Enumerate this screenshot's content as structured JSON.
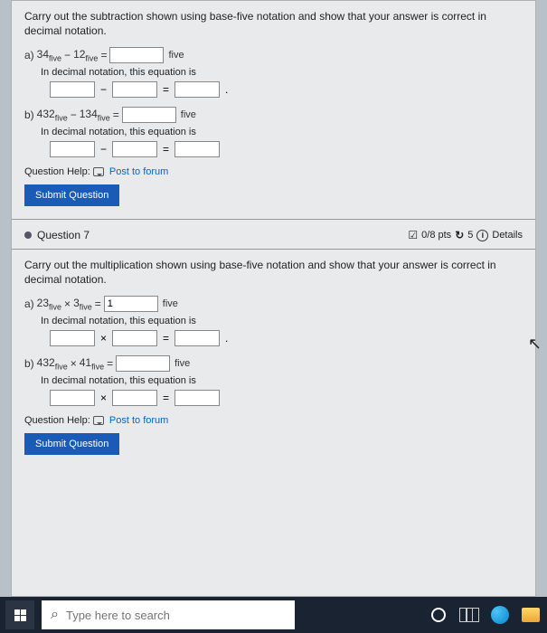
{
  "q6": {
    "instruction": "Carry out the subtraction shown using base-five notation and show that your answer is correct in decimal notation.",
    "a": {
      "label": "a)",
      "lhs1": "34",
      "lhs2": "12",
      "op": "−",
      "unit": "five"
    },
    "b": {
      "label": "b)",
      "lhs1": "432",
      "lhs2": "134",
      "op": "−",
      "unit": "five"
    },
    "decimal_label": "In decimal notation, this equation is",
    "help_label": "Question Help:",
    "help_link": "Post to forum",
    "submit": "Submit Question"
  },
  "q7": {
    "header": "Question 7",
    "pts": "0/8 pts",
    "attempts": "5",
    "details": "Details",
    "instruction": "Carry out the multiplication shown using base-five notation and show that your answer is correct in decimal notation.",
    "a": {
      "label": "a)",
      "lhs1": "23",
      "lhs2": "3",
      "op": "×",
      "unit": "five",
      "value": "1"
    },
    "b": {
      "label": "b)",
      "lhs1": "432",
      "lhs2": "41",
      "op": "×",
      "unit": "five"
    },
    "decimal_label": "In decimal notation, this equation is",
    "help_label": "Question Help:",
    "help_link": "Post to forum",
    "submit": "Submit Question"
  },
  "taskbar": {
    "search_placeholder": "Type here to search"
  },
  "ops": {
    "minus": "−",
    "times": "×",
    "eq": "="
  }
}
